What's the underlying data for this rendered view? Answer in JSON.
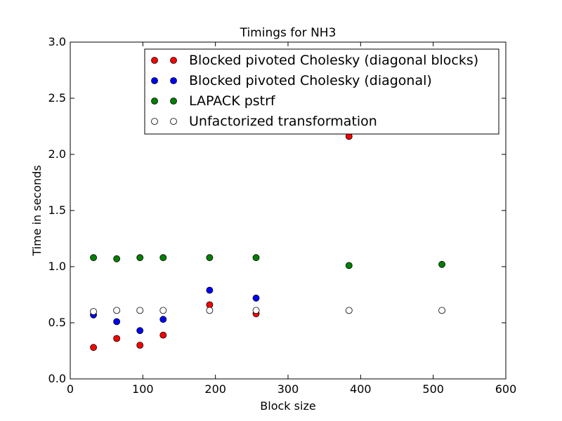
{
  "chart_data": {
    "type": "scatter",
    "title": "Timings for NH3",
    "xlabel": "Block size",
    "ylabel": "Time in seconds",
    "xlim": [
      0,
      600
    ],
    "ylim": [
      0.0,
      3.0
    ],
    "xticks": [
      0,
      100,
      200,
      300,
      400,
      500,
      600
    ],
    "xtick_labels": [
      "0",
      "100",
      "200",
      "300",
      "400",
      "500",
      "600"
    ],
    "yticks": [
      0.0,
      0.5,
      1.0,
      1.5,
      2.0,
      2.5,
      3.0
    ],
    "ytick_labels": [
      "0.0",
      "0.5",
      "1.0",
      "1.5",
      "2.0",
      "2.5",
      "3.0"
    ],
    "grid": false,
    "legend_position": "top-right",
    "series": [
      {
        "name": "Blocked pivoted Cholesky (diagonal blocks)",
        "color": "#ff0000",
        "filled": true,
        "x": [
          32,
          64,
          96,
          128,
          192,
          256,
          384
        ],
        "y": [
          0.28,
          0.36,
          0.3,
          0.39,
          0.66,
          0.58,
          2.16
        ]
      },
      {
        "name": "Blocked pivoted Cholesky (diagonal)",
        "color": "#0000ff",
        "filled": true,
        "x": [
          32,
          64,
          96,
          128,
          192,
          256
        ],
        "y": [
          0.57,
          0.51,
          0.43,
          0.53,
          0.79,
          0.72
        ]
      },
      {
        "name": "LAPACK pstrf",
        "color": "#008000",
        "filled": true,
        "x": [
          32,
          64,
          96,
          128,
          192,
          256,
          384,
          512
        ],
        "y": [
          1.08,
          1.07,
          1.08,
          1.08,
          1.08,
          1.08,
          1.01,
          1.02
        ]
      },
      {
        "name": "Unfactorized transformation",
        "color": "#ffffff",
        "filled": false,
        "x": [
          32,
          64,
          96,
          128,
          192,
          256,
          384,
          512
        ],
        "y": [
          0.6,
          0.61,
          0.61,
          0.61,
          0.61,
          0.61,
          0.61,
          0.61
        ]
      }
    ]
  }
}
